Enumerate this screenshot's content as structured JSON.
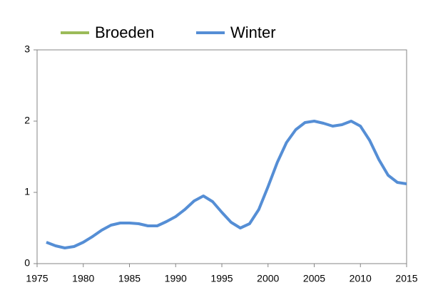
{
  "chart_data": {
    "type": "line",
    "x": [
      1976,
      1977,
      1978,
      1979,
      1980,
      1981,
      1982,
      1983,
      1984,
      1985,
      1986,
      1987,
      1988,
      1989,
      1990,
      1991,
      1992,
      1993,
      1994,
      1995,
      1996,
      1997,
      1998,
      1999,
      2000,
      2001,
      2002,
      2003,
      2004,
      2005,
      2006,
      2007,
      2008,
      2009,
      2010,
      2011,
      2012,
      2013,
      2014,
      2015
    ],
    "series": [
      {
        "name": "Broeden",
        "color": "#9bbb59",
        "values": [
          null,
          null,
          null,
          null,
          null,
          null,
          null,
          null,
          null,
          null,
          null,
          null,
          null,
          null,
          null,
          null,
          null,
          null,
          null,
          null,
          null,
          null,
          null,
          null,
          null,
          null,
          null,
          null,
          null,
          null,
          null,
          null,
          null,
          null,
          null,
          null,
          null,
          null,
          null,
          null
        ]
      },
      {
        "name": "Winter",
        "color": "#558ed5",
        "values": [
          0.3,
          0.25,
          0.22,
          0.24,
          0.3,
          0.38,
          0.47,
          0.54,
          0.57,
          0.57,
          0.56,
          0.53,
          0.53,
          0.59,
          0.66,
          0.76,
          0.88,
          0.95,
          0.87,
          0.72,
          0.58,
          0.5,
          0.56,
          0.76,
          1.08,
          1.42,
          1.7,
          1.88,
          1.98,
          2.0,
          1.97,
          1.93,
          1.95,
          2.0,
          1.93,
          1.73,
          1.46,
          1.24,
          1.14,
          1.12
        ]
      }
    ],
    "xlim": [
      1975,
      2015
    ],
    "xticks": [
      1975,
      1980,
      1985,
      1990,
      1995,
      2000,
      2005,
      2010,
      2015
    ],
    "ylim": [
      0,
      3
    ],
    "yticks": [
      0,
      1,
      2,
      3
    ],
    "grid": false
  }
}
